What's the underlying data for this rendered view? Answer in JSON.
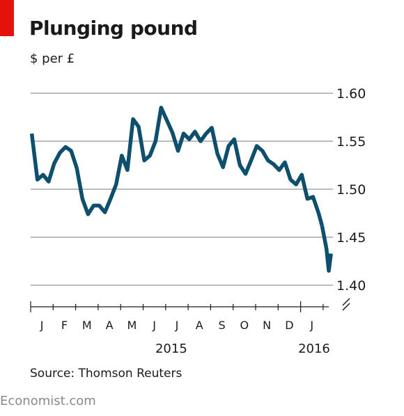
{
  "header": {
    "title": "Plunging pound",
    "subtitle": "$ per £"
  },
  "footer": {
    "source": "Source: Thomson Reuters",
    "brand": "Economist.com"
  },
  "colors": {
    "accent": "#e3120b",
    "line": "#0e4f6e",
    "grid": "#bcbcbc"
  },
  "chart_data": {
    "type": "line",
    "title": "Plunging pound",
    "ylabel": "$ per £",
    "ylim": [
      1.4,
      1.6
    ],
    "yticks": [
      "1.40",
      "1.45",
      "1.50",
      "1.55",
      "1.60"
    ],
    "yaxis_position": "right",
    "grid": true,
    "months": [
      "J",
      "F",
      "M",
      "A",
      "M",
      "J",
      "J",
      "A",
      "S",
      "O",
      "N",
      "D",
      "J"
    ],
    "years": [
      "2015",
      "2016"
    ],
    "x_range": [
      0,
      13.1
    ],
    "series": [
      {
        "x": [
          0.05,
          0.3,
          0.55,
          0.8,
          1.05,
          1.3,
          1.55,
          1.8,
          2.05,
          2.3,
          2.55,
          2.8,
          3.05,
          3.3,
          3.55,
          3.8,
          4.05,
          4.3,
          4.55,
          4.8,
          5.05,
          5.3,
          5.55,
          5.8,
          6.05,
          6.3,
          6.55,
          6.8,
          7.05,
          7.3,
          7.55,
          7.8,
          8.05,
          8.3,
          8.55,
          8.8,
          9.05,
          9.3,
          9.55,
          9.8,
          10.05,
          10.3,
          10.55,
          10.8,
          11.05,
          11.3,
          11.55,
          11.8,
          12.05,
          12.3,
          12.55,
          12.8,
          12.95
        ],
        "y": [
          1.558,
          1.51,
          1.515,
          1.508,
          1.527,
          1.538,
          1.544,
          1.54,
          1.522,
          1.49,
          1.474,
          1.483,
          1.483,
          1.476,
          1.49,
          1.505,
          1.535,
          1.52,
          1.573,
          1.565,
          1.53,
          1.535,
          1.55,
          1.585,
          1.572,
          1.559,
          1.54,
          1.558,
          1.552,
          1.56,
          1.55,
          1.558,
          1.564,
          1.537,
          1.523,
          1.545,
          1.552,
          1.525,
          1.516,
          1.53,
          1.545,
          1.54,
          1.53,
          1.526,
          1.52,
          1.528,
          1.51,
          1.505,
          1.515,
          1.49,
          1.492,
          1.475,
          1.462
        ]
      },
      {
        "x": [
          12.95,
          13.05,
          13.15,
          13.25,
          13.35
        ],
        "y": [
          1.462,
          1.45,
          1.438,
          1.415,
          1.433
        ]
      }
    ]
  }
}
